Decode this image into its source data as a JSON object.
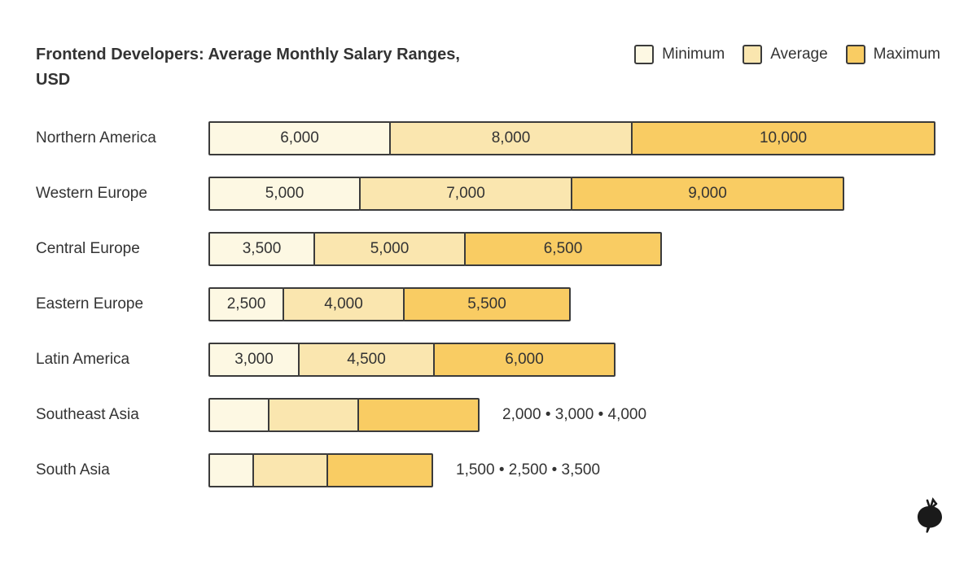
{
  "title": {
    "line1": "Frontend Developers: Average Monthly Salary Ranges,",
    "line2": "USD"
  },
  "legend": [
    {
      "label": "Minimum",
      "color": "#FDF8E3"
    },
    {
      "label": "Average",
      "color": "#FAE6AF"
    },
    {
      "label": "Maximum",
      "color": "#F9CC63"
    }
  ],
  "colors": {
    "border": "#3B3B3B",
    "text": "#333333",
    "logo": "#1A1A1A",
    "background": "#FFFFFF"
  },
  "chart_data": {
    "type": "bar",
    "orientation": "horizontal",
    "stacked": true,
    "title": "Frontend Developers: Average Monthly Salary Ranges, USD",
    "legend_position": "top-right",
    "series": [
      "Minimum",
      "Average",
      "Maximum"
    ],
    "categories": [
      "Northern America",
      "Western Europe",
      "Central Europe",
      "Eastern Europe",
      "Latin America",
      "Southeast Asia",
      "South Asia"
    ],
    "rows": [
      {
        "category": "Northern America",
        "values": [
          6000,
          8000,
          10000
        ],
        "segment_labels": [
          "6,000",
          "8,000",
          "10,000"
        ],
        "labels_inside": true
      },
      {
        "category": "Western Europe",
        "values": [
          5000,
          7000,
          9000
        ],
        "segment_labels": [
          "5,000",
          "7,000",
          "9,000"
        ],
        "labels_inside": true
      },
      {
        "category": "Central Europe",
        "values": [
          3500,
          5000,
          6500
        ],
        "segment_labels": [
          "3,500",
          "5,000",
          "6,500"
        ],
        "labels_inside": true
      },
      {
        "category": "Eastern Europe",
        "values": [
          2500,
          4000,
          5500
        ],
        "segment_labels": [
          "2,500",
          "4,000",
          "5,500"
        ],
        "labels_inside": true
      },
      {
        "category": "Latin America",
        "values": [
          3000,
          4500,
          6000
        ],
        "segment_labels": [
          "3,000",
          "4,500",
          "6,000"
        ],
        "labels_inside": true
      },
      {
        "category": "Southeast Asia",
        "values": [
          2000,
          3000,
          4000
        ],
        "labels_inside": false,
        "outside_label": "2,000 • 3,000 • 4,000"
      },
      {
        "category": "South Asia",
        "values": [
          1500,
          2500,
          3500
        ],
        "labels_inside": false,
        "outside_label": "1,500 • 2,500 • 3,500"
      }
    ]
  }
}
